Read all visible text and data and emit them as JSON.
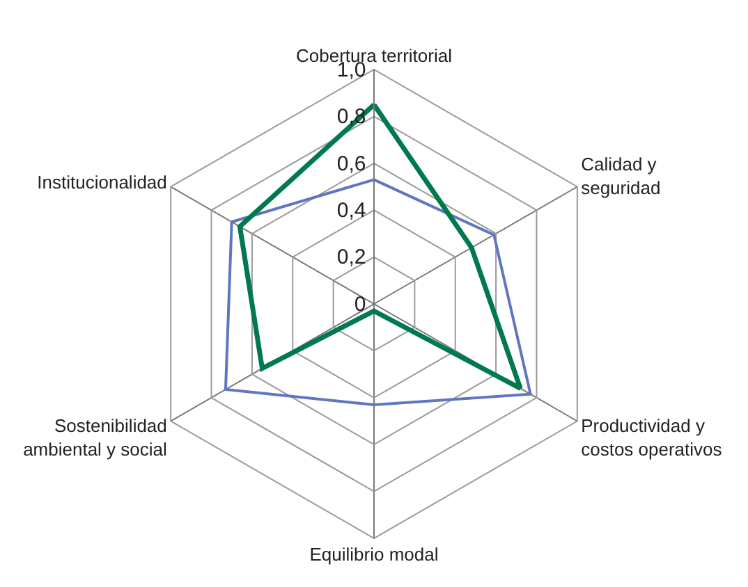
{
  "chart_data": {
    "type": "radar",
    "categories": [
      "Cobertura territorial",
      "Calidad y\nseguridad",
      "Productividad y\ncostos operativos",
      "Equilibrio modal",
      "Sostenibilidad\nambiental y social",
      "Institucionalidad"
    ],
    "series": [
      {
        "color": "#6176c0",
        "values": [
          0.53,
          0.59,
          0.77,
          0.43,
          0.73,
          0.7
        ]
      },
      {
        "color": "#007a4d",
        "values": [
          0.85,
          0.48,
          0.72,
          0.03,
          0.55,
          0.66
        ]
      }
    ],
    "ylim": [
      0,
      1
    ],
    "yticks": [
      {
        "value": 0,
        "label": "0"
      },
      {
        "value": 0.2,
        "label": "0,2"
      },
      {
        "value": 0.4,
        "label": "0,4"
      },
      {
        "value": 0.6,
        "label": "0,6"
      },
      {
        "value": 0.8,
        "label": "0,8"
      },
      {
        "value": 1,
        "label": "1,0"
      }
    ],
    "grid": true
  }
}
